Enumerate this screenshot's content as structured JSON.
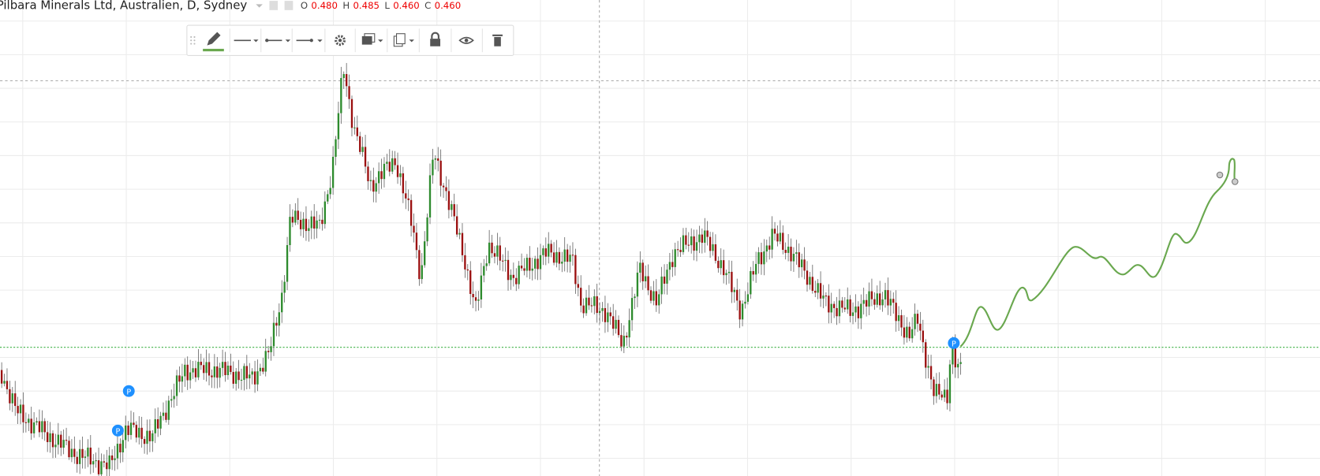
{
  "header": {
    "title": "Pilbara Minerals Ltd, Australien, D, Sydney",
    "ohlc": [
      {
        "label": "O",
        "value": "0.480"
      },
      {
        "label": "H",
        "value": "0.485"
      },
      {
        "label": "L",
        "value": "0.460"
      },
      {
        "label": "C",
        "value": "0.460"
      }
    ]
  },
  "markers": [
    "P",
    "P",
    "P"
  ]
}
